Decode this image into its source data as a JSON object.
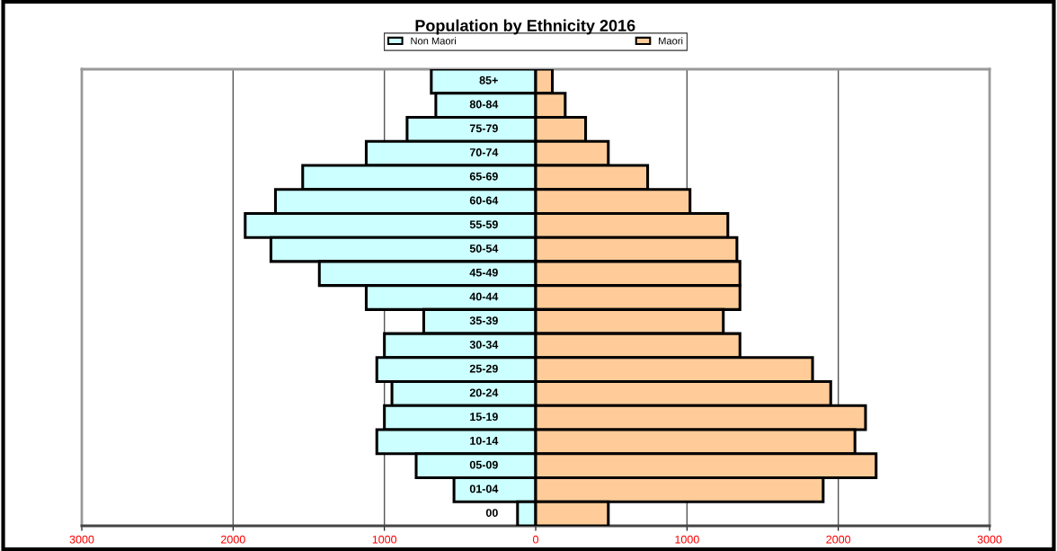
{
  "chart_data": {
    "type": "bar",
    "orientation": "horizontal",
    "title": "Population by Ethnicity 2016",
    "categories": [
      "85+",
      "80-84",
      "75-79",
      "70-74",
      "65-69",
      "60-64",
      "55-59",
      "50-54",
      "45-49",
      "40-44",
      "35-39",
      "30-34",
      "25-29",
      "20-24",
      "15-19",
      "10-14",
      "05-09",
      "01-04",
      "00"
    ],
    "series": [
      {
        "name": "Non Maori",
        "color": "#ccffff",
        "values": [
          -690,
          -660,
          -850,
          -1120,
          -1540,
          -1720,
          -1920,
          -1750,
          -1430,
          -1120,
          -740,
          -1000,
          -1050,
          -950,
          -1000,
          -1050,
          -790,
          -540,
          -120
        ]
      },
      {
        "name": "Maori",
        "color": "#ffcc99",
        "values": [
          110,
          195,
          330,
          480,
          740,
          1020,
          1270,
          1330,
          1350,
          1350,
          1240,
          1350,
          1830,
          1950,
          2180,
          2110,
          2250,
          1900,
          480
        ]
      }
    ],
    "xlim": [
      -3000,
      3000
    ],
    "xticks": [
      {
        "value": -3000,
        "label": "3000"
      },
      {
        "value": -2000,
        "label": "2000"
      },
      {
        "value": -1000,
        "label": "1000"
      },
      0,
      1000,
      2000,
      3000
    ],
    "stacked": true,
    "grid": "x",
    "legend": "top"
  }
}
